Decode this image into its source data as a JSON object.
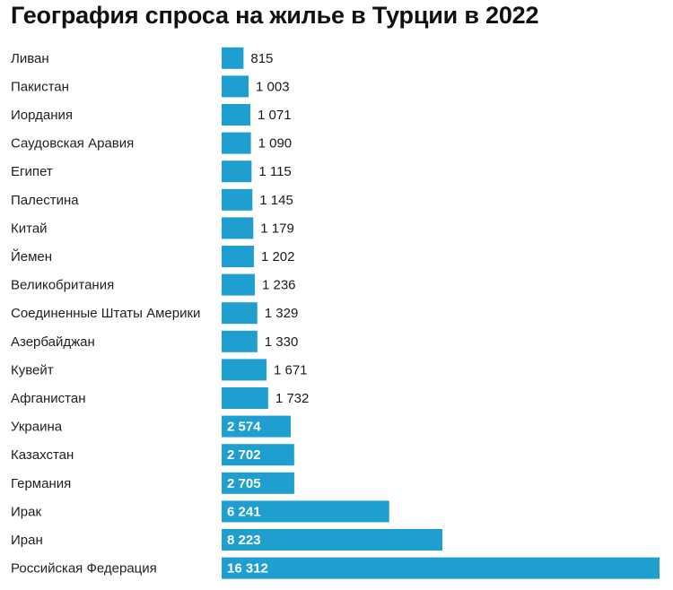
{
  "chart_data": {
    "type": "bar",
    "orientation": "horizontal",
    "title": "География спроса на жилье в Турции в 2022",
    "categories": [
      "Ливан",
      "Пакистан",
      "Иордания",
      "Саудовская Аравия",
      "Египет",
      "Палестина",
      "Китай",
      "Йемен",
      "Великобритания",
      "Соединенные Штаты Америки",
      "Азербайджан",
      "Кувейт",
      "Афганистан",
      "Украина",
      "Казахстан",
      "Германия",
      "Ирак",
      "Иран",
      "Российская Федерация"
    ],
    "values": [
      815,
      1003,
      1071,
      1090,
      1115,
      1145,
      1179,
      1202,
      1236,
      1329,
      1330,
      1671,
      1732,
      2574,
      2702,
      2705,
      6241,
      8223,
      16312
    ],
    "value_labels": [
      "815",
      "1 003",
      "1 071",
      "1 090",
      "1 115",
      "1 145",
      "1 179",
      "1 202",
      "1 236",
      "1 329",
      "1 330",
      "1 671",
      "1 732",
      "2 574",
      "2 702",
      "2 705",
      "6 241",
      "8 223",
      "16 312"
    ],
    "xlim": [
      0,
      16312
    ],
    "grid": false,
    "legend": "none",
    "colors": {
      "bar": "#1f9fcf",
      "label_inside": "#ffffff",
      "label_outside": "#1a1a1a"
    }
  }
}
